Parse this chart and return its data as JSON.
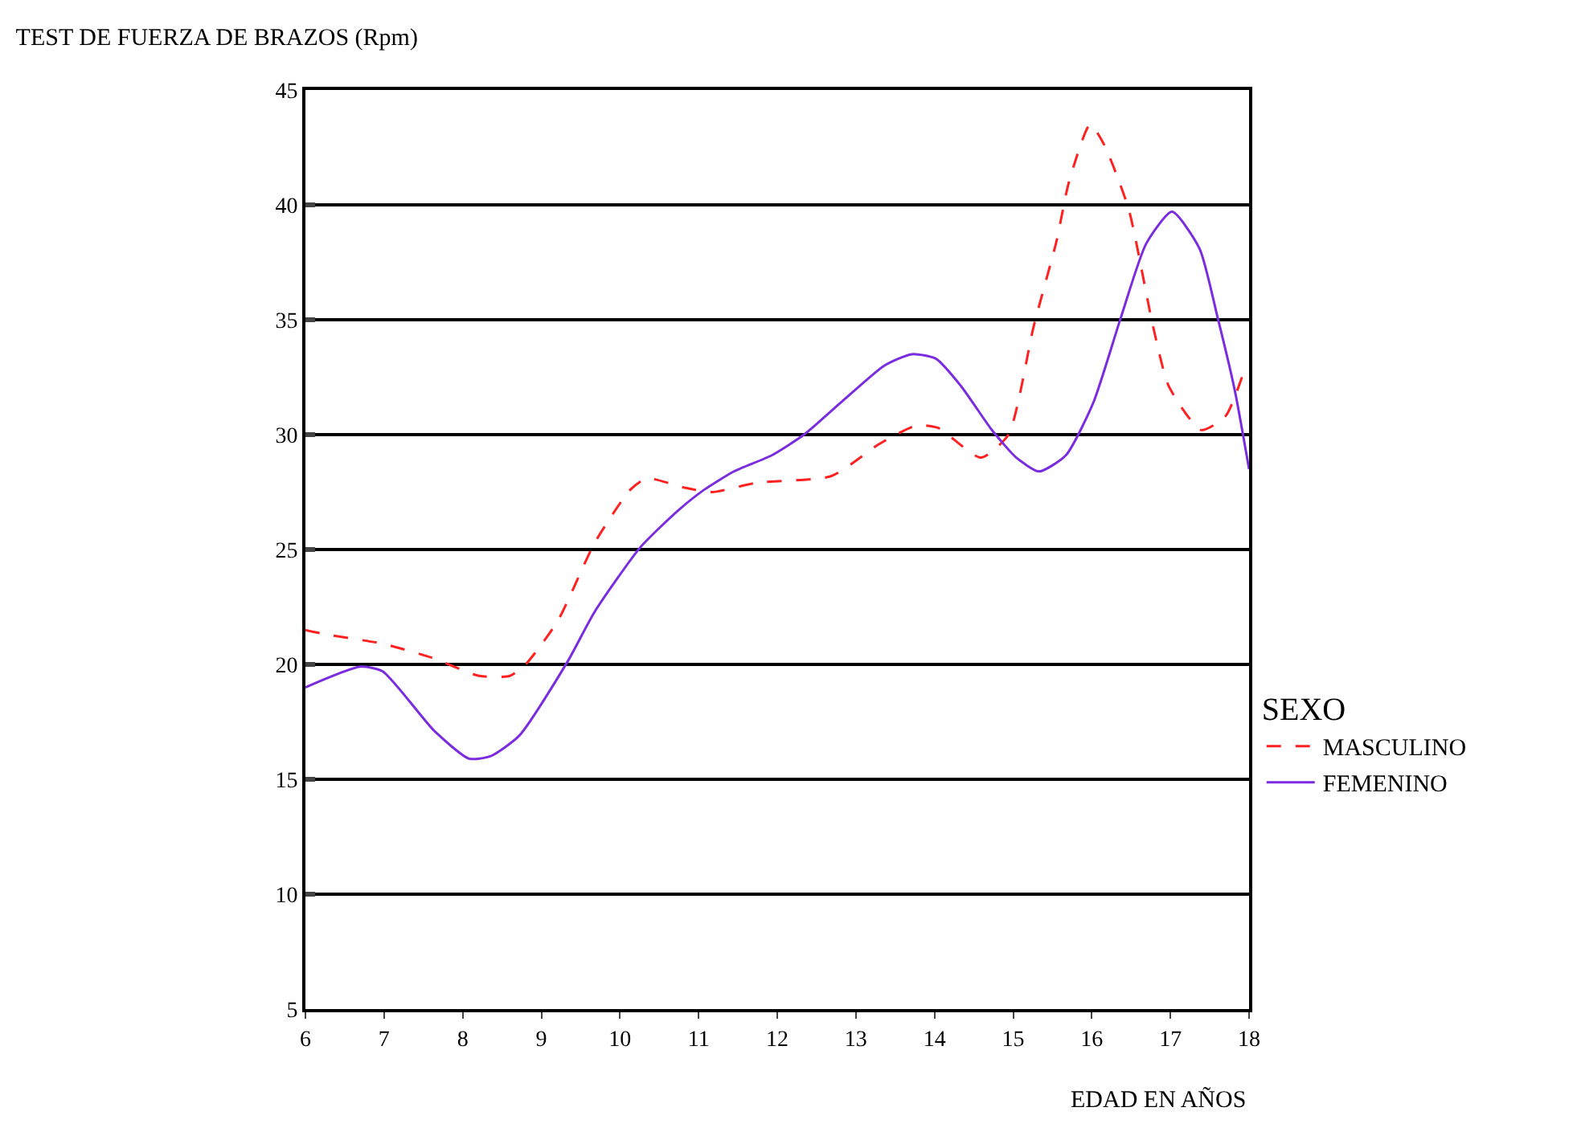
{
  "chart_data": {
    "type": "line",
    "title": "TEST DE FUERZA DE BRAZOS (Rpm)",
    "xlabel": "EDAD EN AÑOS",
    "legend_title": "SEXO",
    "xlim": [
      6,
      18
    ],
    "xticks": [
      6,
      7,
      8,
      9,
      10,
      11,
      12,
      13,
      14,
      15,
      16,
      17,
      18
    ],
    "ylim": [
      5,
      45
    ],
    "yticks": [
      5,
      10,
      15,
      20,
      25,
      30,
      35,
      40,
      45
    ],
    "grid": "y",
    "legend": "right",
    "marker": "none",
    "series": [
      {
        "name": "MASCULINO",
        "color": "#ff2020",
        "line_style": "dashed",
        "x": [
          6,
          6.27,
          6.98,
          7.6,
          8.21,
          8.6,
          8.8,
          9.21,
          9.68,
          10.13,
          10.34,
          10.81,
          11.17,
          11.73,
          12.69,
          13.3,
          13.77,
          14.04,
          14.59,
          14.94,
          15.26,
          15.55,
          15.71,
          15.98,
          16.16,
          16.47,
          16.78,
          16.98,
          17.39,
          17.7,
          17.93
        ],
        "values": [
          21.5,
          21.3,
          20.9,
          20.3,
          19.5,
          19.5,
          20.0,
          21.9,
          25.3,
          27.6,
          28.1,
          27.7,
          27.5,
          27.9,
          28.2,
          29.6,
          30.4,
          30.3,
          29.0,
          30.0,
          34.7,
          38.4,
          41.0,
          43.5,
          42.6,
          39.8,
          34.7,
          32.1,
          30.2,
          30.8,
          32.7
        ]
      },
      {
        "name": "FEMENINO",
        "color": "#7b2be0",
        "line_style": "solid",
        "x": [
          6,
          6.7,
          6.98,
          7.64,
          8.08,
          8.35,
          8.72,
          9.33,
          9.68,
          10.26,
          10.74,
          11.07,
          11.45,
          11.93,
          12.34,
          12.81,
          13.36,
          13.71,
          14.02,
          14.34,
          14.73,
          15.04,
          15.33,
          15.67,
          16.02,
          16.37,
          16.69,
          17.02,
          17.37,
          17.6,
          17.82,
          18
        ],
        "values": [
          19.0,
          19.9,
          19.7,
          17.1,
          15.9,
          16.0,
          16.9,
          20.1,
          22.3,
          25.1,
          26.7,
          27.6,
          28.4,
          29.1,
          30.0,
          31.4,
          33.0,
          33.5,
          33.3,
          32.1,
          30.2,
          29.0,
          28.4,
          29.1,
          31.4,
          35.1,
          38.3,
          39.7,
          38.1,
          35.1,
          31.9,
          28.5
        ]
      }
    ]
  }
}
